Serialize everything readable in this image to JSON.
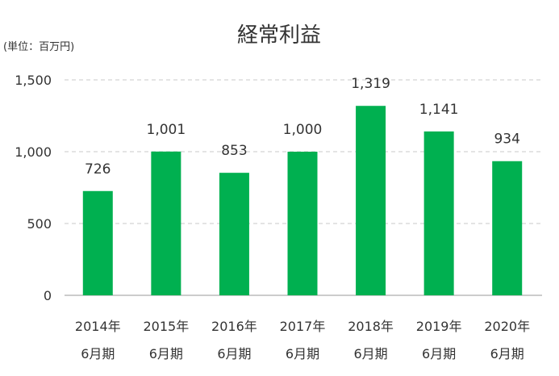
{
  "chart_data": {
    "type": "bar",
    "title": "経常利益",
    "unit_label": "(単位：百万円)",
    "categories": [
      [
        "2014年",
        "6月期"
      ],
      [
        "2015年",
        "6月期"
      ],
      [
        "2016年",
        "6月期"
      ],
      [
        "2017年",
        "6月期"
      ],
      [
        "2018年",
        "6月期"
      ],
      [
        "2019年",
        "6月期"
      ],
      [
        "2020年",
        "6月期"
      ]
    ],
    "values": [
      726,
      1001,
      853,
      1000,
      1319,
      1141,
      934
    ],
    "value_labels": [
      "726",
      "1,001",
      "853",
      "1,000",
      "1,319",
      "1,141",
      "934"
    ],
    "ylim": [
      0,
      1500
    ],
    "yticks": [
      0,
      500,
      1000,
      1500
    ],
    "ytick_labels": [
      "0",
      "500",
      "1,000",
      "1,500"
    ],
    "grid": true,
    "bar_color": "#00b050"
  }
}
